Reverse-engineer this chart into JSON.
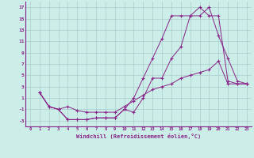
{
  "xlabel": "Windchill (Refroidissement éolien,°C)",
  "background_color": "#cceee8",
  "grid_color": "#aacccc",
  "line_color": "#882288",
  "xlim": [
    -0.5,
    23.5
  ],
  "ylim": [
    -4,
    18
  ],
  "xticks": [
    0,
    1,
    2,
    3,
    4,
    5,
    6,
    7,
    8,
    9,
    10,
    11,
    12,
    13,
    14,
    15,
    16,
    17,
    18,
    19,
    20,
    21,
    22,
    23
  ],
  "yticks": [
    -3,
    -1,
    1,
    3,
    5,
    7,
    9,
    11,
    13,
    15,
    17
  ],
  "line1_x": [
    1,
    2,
    3,
    4,
    5,
    6,
    7,
    8,
    9,
    10,
    11,
    12,
    13,
    14,
    15,
    16,
    17,
    18,
    19,
    20,
    21,
    22,
    23
  ],
  "line1_y": [
    2,
    -0.5,
    -1,
    -2.8,
    -2.8,
    -2.8,
    -2.5,
    -2.5,
    -2.5,
    -1.0,
    1.0,
    4.5,
    8.0,
    11.5,
    15.5,
    15.5,
    15.5,
    17.0,
    15.5,
    15.5,
    4.0,
    3.5,
    3.5
  ],
  "line2_x": [
    1,
    2,
    3,
    4,
    5,
    6,
    7,
    8,
    9,
    10,
    11,
    12,
    13,
    14,
    15,
    16,
    17,
    18,
    19,
    20,
    21,
    22,
    23
  ],
  "line2_y": [
    2,
    -0.5,
    -1,
    -2.8,
    -2.8,
    -2.8,
    -2.5,
    -2.5,
    -2.5,
    -1.0,
    -1.5,
    1.0,
    4.5,
    4.5,
    8.0,
    10.0,
    15.5,
    15.5,
    17.0,
    12.0,
    8.0,
    4.0,
    3.5
  ],
  "line3_x": [
    1,
    2,
    3,
    4,
    5,
    6,
    7,
    8,
    9,
    10,
    11,
    12,
    13,
    14,
    15,
    16,
    17,
    18,
    19,
    20,
    21,
    22,
    23
  ],
  "line3_y": [
    2,
    -0.5,
    -1,
    -0.5,
    -1.2,
    -1.5,
    -1.5,
    -1.5,
    -1.5,
    -0.5,
    0.5,
    1.5,
    2.5,
    3.0,
    3.5,
    4.5,
    5.0,
    5.5,
    6.0,
    7.5,
    3.5,
    3.5,
    3.5
  ],
  "figsize": [
    3.2,
    2.0
  ],
  "dpi": 100
}
